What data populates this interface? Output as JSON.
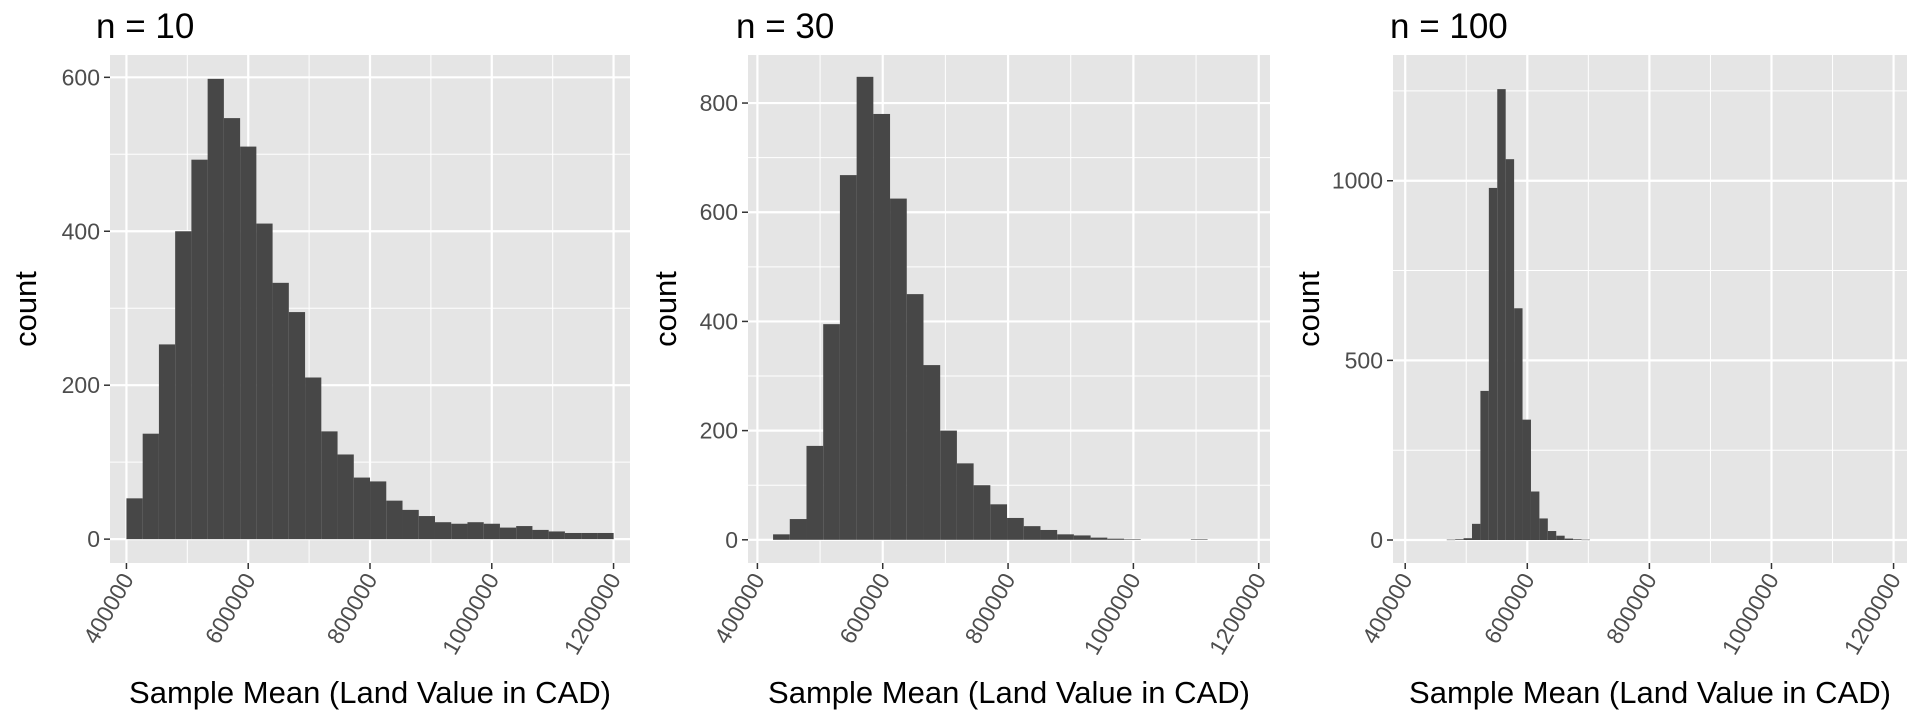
{
  "colors": {
    "panel_background": "#e5e5e5",
    "grid_major": "#ffffff",
    "bar_fill": "#474747",
    "tick_text": "#4d4d4d",
    "tick_mark": "#333333",
    "text": "#000000"
  },
  "chart_data": [
    {
      "type": "bar",
      "title": "n =  10",
      "xlabel": "Sample Mean (Land Value in CAD)",
      "ylabel": "count",
      "xlim": [
        373000,
        1227000
      ],
      "ylim": [
        -31,
        629
      ],
      "x_ticks": [
        400000,
        600000,
        800000,
        1000000,
        1200000
      ],
      "x_tick_labels": [
        "400000",
        "600000",
        "800000",
        "1000000",
        "1200000"
      ],
      "y_ticks": [
        0,
        200,
        400,
        600
      ],
      "y_tick_labels": [
        "0",
        "200",
        "400",
        "600"
      ],
      "grid": true,
      "bins": {
        "start": 400000,
        "width": 26670,
        "counts": [
          53,
          137,
          253,
          400,
          493,
          598,
          547,
          510,
          410,
          333,
          295,
          210,
          140,
          110,
          80,
          75,
          50,
          38,
          30,
          22,
          20,
          22,
          20,
          15,
          17,
          12,
          10,
          8,
          8,
          8
        ]
      }
    },
    {
      "type": "bar",
      "title": "n =  30",
      "xlabel": "Sample Mean (Land Value in CAD)",
      "ylabel": "count",
      "xlim": [
        385000,
        1218000
      ],
      "ylim": [
        -42.5,
        888
      ],
      "x_ticks": [
        400000,
        600000,
        800000,
        1000000,
        1200000
      ],
      "x_tick_labels": [
        "400000",
        "600000",
        "800000",
        "1000000",
        "1200000"
      ],
      "y_ticks": [
        0,
        200,
        400,
        600,
        800
      ],
      "y_tick_labels": [
        "0",
        "200",
        "400",
        "600",
        "800"
      ],
      "grid": true,
      "bins": {
        "start": 425000,
        "width": 26670,
        "counts": [
          10,
          38,
          172,
          395,
          668,
          848,
          780,
          625,
          450,
          320,
          200,
          140,
          100,
          65,
          40,
          25,
          18,
          10,
          8,
          4,
          2,
          1,
          0,
          0,
          0,
          1,
          0,
          0,
          0,
          0
        ]
      }
    },
    {
      "type": "bar",
      "title": "n =  100",
      "xlabel": "Sample Mean (Land Value in CAD)",
      "ylabel": "count",
      "xlim": [
        380000,
        1222000
      ],
      "ylim": [
        -64,
        1350
      ],
      "x_ticks": [
        400000,
        600000,
        800000,
        1000000,
        1200000
      ],
      "x_tick_labels": [
        "400000",
        "600000",
        "800000",
        "1000000",
        "1200000"
      ],
      "y_ticks": [
        0,
        500,
        1000
      ],
      "y_tick_labels": [
        "0",
        "500",
        "1000"
      ],
      "grid": true,
      "bins": {
        "start": 468000,
        "width": 13800,
        "counts": [
          1,
          2,
          5,
          45,
          415,
          980,
          1255,
          1060,
          645,
          335,
          135,
          60,
          25,
          12,
          4,
          2,
          1,
          0,
          0,
          0
        ]
      }
    }
  ]
}
